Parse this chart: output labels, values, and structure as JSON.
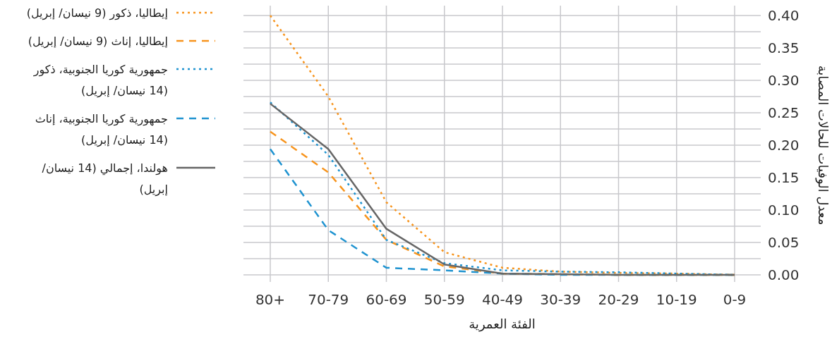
{
  "chart_data": {
    "type": "line",
    "xlabel": "الفئة العمرية",
    "ylabel": "معدل الوفيات للحالات المصابة",
    "categories": [
      "80+",
      "70-79",
      "60-69",
      "50-59",
      "40-49",
      "30-39",
      "20-29",
      "10-19",
      "0-9"
    ],
    "series": [
      {
        "name": "إيطاليا، ذكور (9 نيسان/ إبريل)",
        "color": "#f7941d",
        "line_style": "dotted",
        "values": [
          0.4,
          0.275,
          0.112,
          0.035,
          0.011,
          0.005,
          0.003,
          0.002,
          0
        ]
      },
      {
        "name": "إيطاليا، إناث (9 نيسان/ إبريل)",
        "color": "#f7941d",
        "line_style": "dashed",
        "values": [
          0.221,
          0.158,
          0.054,
          0.013,
          0.002,
          0.001,
          0,
          0,
          0
        ]
      },
      {
        "name": "جمهورية كوريا الجنوبية، ذكور (14 نيسان/ إبريل)",
        "color": "#1f93d0",
        "line_style": "dotted",
        "values": [
          0.266,
          0.185,
          0.054,
          0.018,
          0.007,
          0.005,
          0.004,
          0.002,
          0
        ]
      },
      {
        "name": "جمهورية كوريا الجنوبية، إناث (14 نيسان/ إبريل)",
        "color": "#1f93d0",
        "line_style": "dashed",
        "values": [
          0.194,
          0.069,
          0.011,
          0.007,
          0.002,
          0,
          0,
          0,
          0
        ]
      },
      {
        "name": "هولندا، إجمالي (14 نيسان/ إبريل)",
        "color": "#666666",
        "line_style": "solid",
        "values": [
          0.264,
          0.194,
          0.071,
          0.016,
          0.002,
          0.001,
          0,
          0,
          0
        ]
      }
    ],
    "ylim": [
      0,
      0.4
    ],
    "yticks": [
      {
        "value": 0,
        "label": "0.00"
      },
      {
        "value": 0.025,
        "label": null
      },
      {
        "value": 0.05,
        "label": "0.05"
      },
      {
        "value": 0.075,
        "label": null
      },
      {
        "value": 0.1,
        "label": "0.10"
      },
      {
        "value": 0.125,
        "label": null
      },
      {
        "value": 0.15,
        "label": "0.15"
      },
      {
        "value": 0.175,
        "label": null
      },
      {
        "value": 0.2,
        "label": "0.20"
      },
      {
        "value": 0.225,
        "label": null
      },
      {
        "value": 0.25,
        "label": "0.25"
      },
      {
        "value": 0.275,
        "label": null
      },
      {
        "value": 0.3,
        "label": "0.30"
      },
      {
        "value": 0.325,
        "label": null
      },
      {
        "value": 0.35,
        "label": "0.35"
      },
      {
        "value": 0.375,
        "label": null
      },
      {
        "value": 0.4,
        "label": "0.40"
      }
    ],
    "grid": true,
    "legend": "left",
    "marker": "none"
  }
}
